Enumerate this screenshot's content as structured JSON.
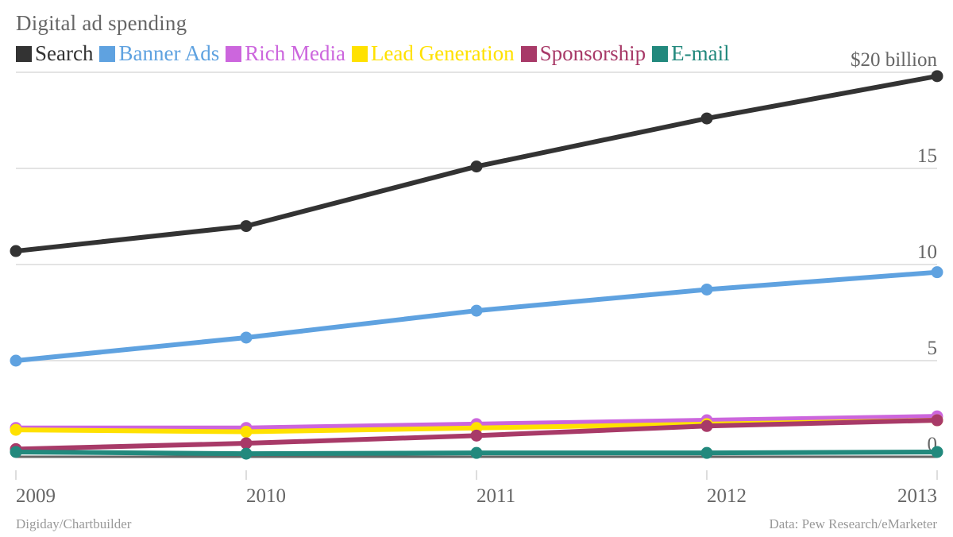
{
  "header": {
    "title": "Digital ad spending"
  },
  "footer": {
    "credit": "Digiday/Chartbuilder",
    "source": "Data: Pew Research/eMarketer"
  },
  "chart_data": {
    "type": "line",
    "title": "Digital ad spending",
    "xlabel": "",
    "ylabel": "",
    "x": [
      "2009",
      "2010",
      "2011",
      "2012",
      "2013"
    ],
    "ylim": [
      0,
      20
    ],
    "yticks": [
      0,
      5,
      10,
      15,
      20
    ],
    "ytick_labels": [
      "0",
      "5",
      "10",
      "15",
      "$20 billion"
    ],
    "grid": true,
    "legend_position": "top-left",
    "y_axis_position": "right",
    "series": [
      {
        "name": "Search",
        "color": "#333333",
        "values": [
          10.7,
          12.0,
          15.1,
          17.6,
          19.8
        ]
      },
      {
        "name": "Banner Ads",
        "color": "#5fa2e0",
        "values": [
          5.0,
          6.2,
          7.6,
          8.7,
          9.6
        ]
      },
      {
        "name": "Rich Media",
        "color": "#cc66dd",
        "values": [
          1.5,
          1.5,
          1.7,
          1.9,
          2.1
        ]
      },
      {
        "name": "Lead Generation",
        "color": "#ffe100",
        "values": [
          1.4,
          1.3,
          1.5,
          1.7,
          1.9
        ]
      },
      {
        "name": "Sponsorship",
        "color": "#a83a68",
        "values": [
          0.4,
          0.7,
          1.1,
          1.6,
          1.9
        ]
      },
      {
        "name": "E-mail",
        "color": "#22897d",
        "values": [
          0.25,
          0.16,
          0.2,
          0.2,
          0.25
        ]
      }
    ]
  }
}
